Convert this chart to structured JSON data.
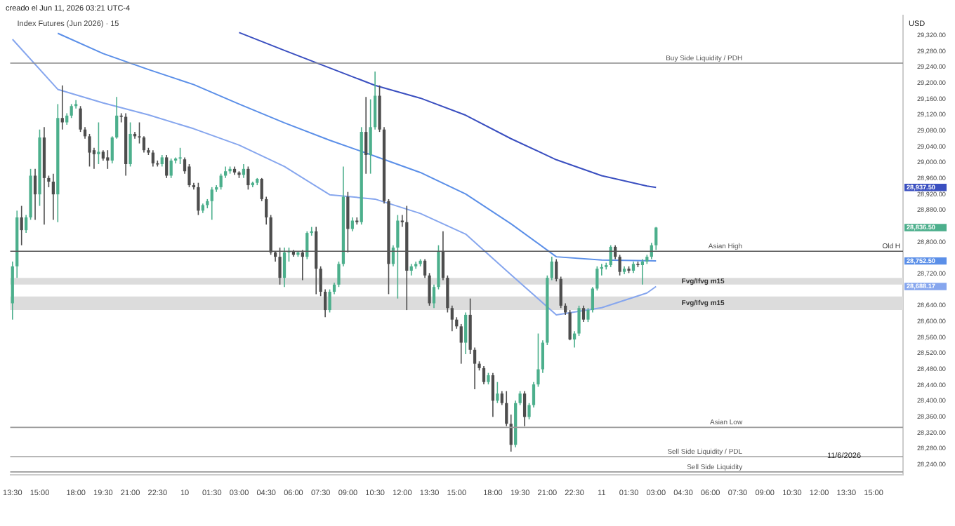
{
  "chart_data": {
    "type": "candlestick",
    "title": "Index Futures (Jun 2026) · 15",
    "annotations": [
      "creado el Jun 11, 2026 03:21 UTC-4",
      "USD",
      "11/6/2026",
      "28,937.50",
      "28,836.50",
      "28,752.50",
      "28,688.17",
      "Old H"
    ],
    "categories": [
      "13:30",
      null,
      null,
      null,
      null,
      null,
      "15:00",
      null,
      null,
      null,
      null,
      null,
      null,
      null,
      "18:00",
      null,
      null,
      null,
      null,
      null,
      "19:30",
      null,
      null,
      null,
      null,
      null,
      "21:00",
      null,
      null,
      null,
      null,
      null,
      "22:30",
      null,
      null,
      null,
      null,
      null,
      "10",
      null,
      null,
      null,
      null,
      null,
      "01:30",
      null,
      null,
      null,
      null,
      null,
      "03:00",
      null,
      null,
      null,
      null,
      null,
      "04:30",
      null,
      null,
      null,
      null,
      null,
      "06:00",
      null,
      null,
      null,
      null,
      null,
      "07:30",
      null,
      null,
      null,
      null,
      null,
      "09:00",
      null,
      null,
      null,
      null,
      null,
      "10:30",
      null,
      null,
      null,
      null,
      null,
      "12:00",
      null,
      null,
      null,
      null,
      null,
      "13:30",
      null,
      null,
      null,
      null,
      null,
      "15:00",
      null,
      null,
      null,
      null,
      null,
      null,
      null,
      "18:00",
      null,
      null,
      null,
      null,
      null,
      "19:30",
      null,
      null,
      null,
      null,
      null,
      "21:00",
      null,
      null,
      null,
      null,
      null,
      "22:30",
      null,
      null,
      null,
      null,
      null,
      "11",
      null,
      null,
      null,
      null,
      null,
      "01:30",
      null,
      null,
      null,
      null,
      null,
      "03:00",
      null,
      null,
      null,
      null,
      null,
      "04:30",
      null,
      null,
      null,
      null,
      null,
      "06:00",
      null,
      null,
      null,
      null,
      null,
      "07:30",
      null,
      null,
      null,
      null,
      null,
      "09:00",
      null,
      null,
      null,
      null,
      null,
      "10:30",
      null,
      null,
      null,
      null,
      null,
      "12:00",
      null,
      null,
      null,
      null,
      null,
      "13:30",
      null,
      null,
      null,
      null,
      null,
      "15:00",
      null,
      null,
      null,
      null,
      null,
      null
    ],
    "ohlc": [
      [
        28646,
        28751,
        28605,
        28739
      ],
      [
        28739,
        28879,
        28710,
        28862
      ],
      [
        28862,
        28891,
        28792,
        28830
      ],
      [
        28830,
        28868,
        28823,
        28862
      ],
      [
        28862,
        28984,
        28856,
        28967
      ],
      [
        28967,
        28984,
        28856,
        28920
      ],
      [
        28920,
        29083,
        28891,
        29063
      ],
      [
        29063,
        29089,
        28844,
        28961
      ],
      [
        28961,
        28967,
        28938,
        28952
      ],
      [
        28952,
        28972,
        28856,
        28920
      ],
      [
        28920,
        29147,
        28850,
        29112
      ],
      [
        29112,
        29194,
        29083,
        29101
      ],
      [
        29101,
        29124,
        29095,
        29118
      ],
      [
        29118,
        29147,
        29112,
        29142
      ],
      [
        29142,
        29157,
        29136,
        29147
      ],
      [
        29136,
        29142,
        29077,
        29083
      ],
      [
        29083,
        29089,
        29060,
        29066
      ],
      [
        29066,
        29072,
        28990,
        29025
      ],
      [
        29031,
        29037,
        28984,
        29021
      ],
      [
        29021,
        29101,
        28996,
        29027
      ],
      [
        29027,
        29031,
        29005,
        29010
      ],
      [
        29013,
        29031,
        28984,
        29005
      ],
      [
        29005,
        29066,
        28998,
        29063
      ],
      [
        29063,
        29165,
        29060,
        29118
      ],
      [
        29118,
        29124,
        29101,
        29115
      ],
      [
        29115,
        29124,
        28967,
        28996
      ],
      [
        28996,
        29101,
        28990,
        29072
      ],
      [
        29072,
        29077,
        29060,
        29066
      ],
      [
        29066,
        29101,
        29048,
        29063
      ],
      [
        29063,
        29066,
        29025,
        29031
      ],
      [
        29031,
        29037,
        29019,
        29025
      ],
      [
        29025,
        29031,
        28990,
        28998
      ],
      [
        28998,
        29005,
        28990,
        28996
      ],
      [
        28996,
        29019,
        28990,
        29013
      ],
      [
        29013,
        29019,
        28961,
        28967
      ],
      [
        28967,
        29010,
        28961,
        29005
      ],
      [
        29005,
        29013,
        28998,
        29010
      ],
      [
        29010,
        29037,
        28996,
        29013
      ],
      [
        29008,
        29013,
        28972,
        28978
      ],
      [
        28990,
        28996,
        28938,
        28943
      ],
      [
        28943,
        28949,
        28932,
        28938
      ],
      [
        28938,
        28949,
        28868,
        28879
      ],
      [
        28879,
        28897,
        28873,
        28893
      ],
      [
        28893,
        28908,
        28885,
        28903
      ],
      [
        28903,
        28938,
        28856,
        28932
      ],
      [
        28932,
        28943,
        28926,
        28938
      ],
      [
        28938,
        28972,
        28932,
        28967
      ],
      [
        28967,
        28990,
        28961,
        28978
      ],
      [
        28978,
        28990,
        28972,
        28984
      ],
      [
        28984,
        28990,
        28969,
        28975
      ],
      [
        28975,
        28978,
        28961,
        28969
      ],
      [
        28969,
        28996,
        28961,
        28984
      ],
      [
        28984,
        28990,
        28932,
        28943
      ],
      [
        28943,
        28952,
        28938,
        28949
      ],
      [
        28949,
        28961,
        28943,
        28959
      ],
      [
        28959,
        28961,
        28903,
        28908
      ],
      [
        28908,
        28914,
        28844,
        28862
      ],
      [
        28862,
        28868,
        28768,
        28774
      ],
      [
        28774,
        28777,
        28751,
        28763
      ],
      [
        28763,
        28786,
        28693,
        28710
      ],
      [
        28710,
        28786,
        28687,
        28774
      ],
      [
        28774,
        28786,
        28751,
        28777
      ],
      [
        28777,
        28780,
        28763,
        28768
      ],
      [
        28768,
        28777,
        28763,
        28774
      ],
      [
        28774,
        28780,
        28704,
        28763
      ],
      [
        28763,
        28827,
        28757,
        28823
      ],
      [
        28823,
        28838,
        28816,
        28827
      ],
      [
        28827,
        28838,
        28669,
        28733
      ],
      [
        28733,
        28739,
        28664,
        28675
      ],
      [
        28675,
        28681,
        28611,
        28629
      ],
      [
        28629,
        28681,
        28623,
        28675
      ],
      [
        28675,
        28698,
        28669,
        28693
      ],
      [
        28693,
        28751,
        28687,
        28745
      ],
      [
        28745,
        28990,
        28739,
        28914
      ],
      [
        28914,
        28926,
        28774,
        28833
      ],
      [
        28833,
        28862,
        28827,
        28854
      ],
      [
        28854,
        28862,
        28844,
        28850
      ],
      [
        28850,
        29089,
        28844,
        29077
      ],
      [
        29077,
        29165,
        28972,
        29019
      ],
      [
        29019,
        29159,
        28972,
        29089
      ],
      [
        29089,
        29229,
        29083,
        29168
      ],
      [
        29168,
        29194,
        29077,
        29083
      ],
      [
        29083,
        29089,
        28897,
        28903
      ],
      [
        28903,
        28908,
        28669,
        28745
      ],
      [
        28745,
        28792,
        28739,
        28786
      ],
      [
        28786,
        28868,
        28658,
        28854
      ],
      [
        28854,
        28868,
        28838,
        28850
      ],
      [
        28850,
        28891,
        28629,
        28728
      ],
      [
        28728,
        28745,
        28716,
        28739
      ],
      [
        28739,
        28751,
        28733,
        28745
      ],
      [
        28745,
        28757,
        28739,
        28753
      ],
      [
        28753,
        28757,
        28710,
        28716
      ],
      [
        28716,
        28722,
        28640,
        28646
      ],
      [
        28646,
        28693,
        28634,
        28687
      ],
      [
        28687,
        28792,
        28681,
        28777
      ],
      [
        28777,
        28827,
        28704,
        28710
      ],
      [
        28710,
        28716,
        28623,
        28634
      ],
      [
        28634,
        28640,
        28576,
        28605
      ],
      [
        28605,
        28611,
        28582,
        28588
      ],
      [
        28588,
        28594,
        28494,
        28547
      ],
      [
        28547,
        28623,
        28518,
        28617
      ],
      [
        28617,
        28658,
        28518,
        28529
      ],
      [
        28529,
        28535,
        28430,
        28494
      ],
      [
        28494,
        28500,
        28477,
        28483
      ],
      [
        28483,
        28488,
        28442,
        28448
      ],
      [
        28448,
        28471,
        28442,
        28465
      ],
      [
        28465,
        28471,
        28360,
        28401
      ],
      [
        28401,
        28448,
        28395,
        28419
      ],
      [
        28419,
        28425,
        28390,
        28395
      ],
      [
        28395,
        28425,
        28337,
        28343
      ],
      [
        28343,
        28366,
        28273,
        28290
      ],
      [
        28290,
        28401,
        28284,
        28395
      ],
      [
        28395,
        28425,
        28390,
        28419
      ],
      [
        28419,
        28425,
        28337,
        28360
      ],
      [
        28360,
        28395,
        28354,
        28390
      ],
      [
        28390,
        28448,
        28384,
        28442
      ],
      [
        28442,
        28570,
        28436,
        28480
      ],
      [
        28480,
        28553,
        28471,
        28547
      ],
      [
        28547,
        28716,
        28541,
        28710
      ],
      [
        28710,
        28763,
        28704,
        28751
      ],
      [
        28751,
        28757,
        28701,
        28707
      ],
      [
        28707,
        28713,
        28634,
        28640
      ],
      [
        28640,
        28646,
        28617,
        28623
      ],
      [
        28623,
        28629,
        28553,
        28555
      ],
      [
        28555,
        28576,
        28535,
        28570
      ],
      [
        28570,
        28640,
        28564,
        28634
      ],
      [
        28634,
        28640,
        28599,
        28605
      ],
      [
        28605,
        28634,
        28599,
        28629
      ],
      [
        28629,
        28687,
        28623,
        28683
      ],
      [
        28683,
        28739,
        28678,
        28733
      ],
      [
        28733,
        28745,
        28716,
        28737
      ],
      [
        28737,
        28748,
        28731,
        28742
      ],
      [
        28742,
        28792,
        28737,
        28788
      ],
      [
        28788,
        28792,
        28757,
        28763
      ],
      [
        28763,
        28768,
        28716,
        28725
      ],
      [
        28725,
        28739,
        28719,
        28733
      ],
      [
        28733,
        28739,
        28722,
        28728
      ],
      [
        28728,
        28751,
        28722,
        28745
      ],
      [
        28745,
        28751,
        28737,
        28742
      ],
      [
        28742,
        28757,
        28693,
        28751
      ],
      [
        28751,
        28768,
        28745,
        28763
      ],
      [
        28763,
        28798,
        28757,
        28792
      ],
      [
        28792,
        28838,
        28780,
        28836.5
      ],
      null,
      null,
      null,
      null,
      null,
      null,
      null,
      null,
      null,
      null,
      null,
      null,
      null,
      null,
      null,
      null,
      null,
      null,
      null,
      null,
      null,
      null,
      null,
      null,
      null,
      null,
      null,
      null,
      null,
      null,
      null,
      null,
      null,
      null,
      null,
      null,
      null,
      null,
      null,
      null,
      null,
      null,
      null,
      null,
      null,
      null,
      null,
      null,
      null,
      null,
      null,
      null,
      null,
      null
    ],
    "series": [
      {
        "type": "line",
        "color": "#3a4fc0",
        "values": [
          null,
          null,
          null,
          null,
          null,
          null,
          null,
          null,
          null,
          null,
          null,
          null,
          null,
          null,
          null,
          null,
          null,
          null,
          null,
          null,
          null,
          null,
          null,
          null,
          null,
          null,
          null,
          null,
          null,
          null,
          null,
          null,
          null,
          null,
          null,
          null,
          null,
          null,
          null,
          null,
          null,
          null,
          null,
          null,
          null,
          null,
          null,
          null,
          null,
          null,
          29327,
          null,
          null,
          null,
          null,
          null,
          null,
          null,
          null,
          null,
          29282,
          null,
          null,
          null,
          null,
          null,
          null,
          null,
          null,
          null,
          29238,
          null,
          null,
          null,
          null,
          null,
          null,
          null,
          null,
          null,
          29194,
          null,
          null,
          null,
          null,
          null,
          null,
          null,
          null,
          null,
          29162,
          null,
          null,
          null,
          null,
          null,
          null,
          null,
          null,
          null,
          29119,
          null,
          null,
          null,
          null,
          null,
          null,
          null,
          null,
          null,
          29060,
          null,
          null,
          null,
          null,
          null,
          null,
          null,
          null,
          null,
          29007,
          null,
          null,
          null,
          null,
          null,
          null,
          null,
          null,
          null,
          28967,
          null,
          null,
          null,
          null,
          null,
          null,
          null,
          null,
          null,
          28941,
          null,
          28937.5,
          null,
          null,
          null,
          null,
          null,
          null,
          null,
          null,
          null,
          null,
          null,
          null,
          null,
          null,
          null,
          null,
          null,
          null,
          null,
          null,
          null,
          null,
          null,
          null,
          null,
          null,
          null,
          null,
          null,
          null,
          null,
          null,
          null,
          null,
          null,
          null,
          null,
          null,
          null,
          null,
          null,
          null,
          null,
          null,
          null,
          null,
          null,
          null,
          null,
          null,
          null,
          null,
          null,
          null
        ]
      },
      {
        "type": "line",
        "color": "#5b8fe8",
        "values": [
          null,
          null,
          null,
          null,
          null,
          null,
          null,
          null,
          null,
          null,
          29325,
          null,
          null,
          null,
          null,
          null,
          null,
          null,
          null,
          null,
          29274,
          null,
          null,
          null,
          null,
          null,
          null,
          null,
          null,
          null,
          29234,
          null,
          null,
          null,
          null,
          null,
          null,
          null,
          null,
          null,
          29196,
          null,
          null,
          null,
          null,
          null,
          null,
          null,
          null,
          null,
          29147,
          null,
          null,
          null,
          null,
          null,
          null,
          null,
          null,
          null,
          29100,
          null,
          null,
          null,
          null,
          null,
          null,
          null,
          null,
          null,
          29056,
          null,
          null,
          null,
          null,
          null,
          null,
          null,
          null,
          null,
          29016,
          null,
          null,
          null,
          null,
          null,
          null,
          null,
          null,
          null,
          28975,
          null,
          null,
          null,
          null,
          null,
          null,
          null,
          null,
          null,
          28921,
          null,
          null,
          null,
          null,
          null,
          null,
          null,
          null,
          null,
          28846,
          null,
          null,
          null,
          null,
          null,
          null,
          null,
          null,
          null,
          28763,
          null,
          null,
          null,
          null,
          null,
          null,
          null,
          null,
          null,
          28755,
          null,
          null,
          null,
          null,
          null,
          null,
          null,
          null,
          null,
          28753,
          null,
          28752.5,
          null,
          null,
          null,
          null,
          null,
          null,
          null,
          null,
          null,
          null,
          null,
          null,
          null,
          null,
          null,
          null,
          null,
          null,
          null,
          null,
          null,
          null,
          null,
          null,
          null,
          null,
          null,
          null,
          null,
          null,
          null,
          null,
          null,
          null,
          null,
          null,
          null,
          null,
          null,
          null,
          null,
          null,
          null,
          null,
          null,
          null,
          null,
          null,
          null,
          null,
          null,
          null,
          null,
          null
        ]
      },
      {
        "type": "line",
        "color": "#86a6ee",
        "values": [
          29310,
          null,
          null,
          null,
          null,
          null,
          null,
          null,
          null,
          null,
          29184,
          null,
          null,
          null,
          null,
          null,
          null,
          null,
          null,
          null,
          29150,
          null,
          null,
          null,
          null,
          null,
          null,
          null,
          null,
          null,
          29120,
          null,
          null,
          null,
          null,
          null,
          null,
          null,
          null,
          null,
          29085,
          null,
          null,
          null,
          null,
          null,
          null,
          null,
          null,
          null,
          29044,
          null,
          null,
          null,
          null,
          null,
          null,
          null,
          null,
          null,
          28990,
          null,
          null,
          null,
          null,
          null,
          null,
          null,
          null,
          null,
          28919,
          null,
          null,
          null,
          null,
          null,
          null,
          null,
          null,
          null,
          28908,
          null,
          null,
          null,
          null,
          null,
          null,
          null,
          null,
          null,
          28872,
          null,
          null,
          null,
          null,
          null,
          null,
          null,
          null,
          null,
          28820,
          null,
          null,
          null,
          null,
          null,
          null,
          null,
          null,
          null,
          28718,
          null,
          null,
          null,
          null,
          null,
          null,
          null,
          null,
          null,
          28617,
          null,
          null,
          null,
          null,
          null,
          null,
          null,
          null,
          null,
          28635,
          null,
          null,
          null,
          null,
          null,
          null,
          null,
          null,
          null,
          28672,
          null,
          28688.17,
          null,
          null,
          null,
          null,
          null,
          null,
          null,
          null,
          null,
          null,
          null,
          null,
          null,
          null,
          null,
          null,
          null,
          null,
          null,
          null,
          null,
          null,
          null,
          null,
          null,
          null,
          null,
          null,
          null,
          null,
          null,
          null,
          null,
          null,
          null,
          null,
          null,
          null,
          null,
          null,
          null,
          null,
          null,
          null,
          null,
          null,
          null,
          null,
          null,
          null,
          null,
          null,
          null,
          null
        ]
      }
    ],
    "ref_lines": [
      {
        "axis": "y",
        "value": 29250,
        "label": "Buy Side Liquidity / PDH",
        "color": "#8a8a8a"
      },
      {
        "axis": "y",
        "value": 28777,
        "label": "Asian High",
        "color": "#555555"
      },
      {
        "axis": "y",
        "value": 28334,
        "label": "Asian Low",
        "color": "#9a9a9a"
      },
      {
        "axis": "y",
        "value": 28260,
        "label": "Sell Side Liquidity / PDL",
        "color": "#9a9a9a"
      },
      {
        "axis": "y",
        "value": 28222,
        "label": "Sell Side Liquidity",
        "color": "#9a9a9a"
      }
    ],
    "bands": [
      {
        "axis": "y",
        "from": 28693,
        "to": 28710,
        "label": "Fvg/Ifvg m15",
        "color": "#dcdcdc"
      },
      {
        "axis": "y",
        "from": 28629,
        "to": 28663,
        "label": "Fvg/Ifvg m15",
        "color": "#dcdcdc"
      }
    ],
    "ylim": [
      28215,
      29370
    ],
    "yticks": [
      {
        "value": 28240,
        "label": "28,240.00"
      },
      {
        "value": 28280,
        "label": "28,280.00"
      },
      {
        "value": 28320,
        "label": "28,320.00"
      },
      {
        "value": 28360,
        "label": "28,360.00"
      },
      {
        "value": 28400,
        "label": "28,400.00"
      },
      {
        "value": 28440,
        "label": "28,440.00"
      },
      {
        "value": 28480,
        "label": "28,480.00"
      },
      {
        "value": 28520,
        "label": "28,520.00"
      },
      {
        "value": 28560,
        "label": "28,560.00"
      },
      {
        "value": 28600,
        "label": "28,600.00"
      },
      {
        "value": 28640,
        "label": "28,640.00"
      },
      {
        "value": 28720,
        "label": "28,720.00"
      },
      {
        "value": 28800,
        "label": "28,800.00"
      },
      {
        "value": 28880,
        "label": "28,880.00"
      },
      {
        "value": 28920,
        "label": "28,920.00"
      },
      {
        "value": 28960,
        "label": "28,960.00"
      },
      {
        "value": 29000,
        "label": "29,000.00"
      },
      {
        "value": 29040,
        "label": "29,040.00"
      },
      {
        "value": 29080,
        "label": "29,080.00"
      },
      {
        "value": 29120,
        "label": "29,120.00"
      },
      {
        "value": 29160,
        "label": "29,160.00"
      },
      {
        "value": 29200,
        "label": "29,200.00"
      },
      {
        "value": 29240,
        "label": "29,240.00"
      },
      {
        "value": 29280,
        "label": "29,280.00"
      },
      {
        "value": 29320,
        "label": "29,320.00"
      }
    ]
  }
}
